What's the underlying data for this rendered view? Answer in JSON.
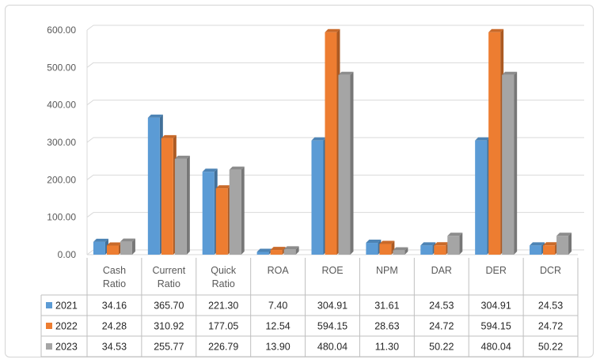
{
  "chart_data": {
    "type": "bar",
    "title": "",
    "xlabel": "",
    "ylabel": "",
    "ylim": [
      0,
      600
    ],
    "y_ticks": [
      "0.00",
      "100.00",
      "200.00",
      "300.00",
      "400.00",
      "500.00",
      "600.00"
    ],
    "grid": true,
    "legend_placement": "data-table-left",
    "categories": [
      [
        "Cash",
        "Ratio"
      ],
      [
        "Current",
        "Ratio"
      ],
      [
        "Quick",
        "Ratio"
      ],
      [
        "ROA"
      ],
      [
        "ROE"
      ],
      [
        "NPM"
      ],
      [
        "DAR"
      ],
      [
        "DER"
      ],
      [
        "DCR"
      ]
    ],
    "series": [
      {
        "name": "2021",
        "color": "#5b9bd5",
        "values": [
          34.16,
          365.7,
          221.3,
          7.4,
          304.91,
          31.61,
          24.53,
          304.91,
          24.53
        ],
        "labels": [
          "34.16",
          "365.70",
          "221.30",
          "7.40",
          "304.91",
          "31.61",
          "24.53",
          "304.91",
          "24.53"
        ]
      },
      {
        "name": "2022",
        "color": "#ed7d31",
        "values": [
          24.28,
          310.92,
          177.05,
          12.54,
          594.15,
          28.63,
          24.72,
          594.15,
          24.72
        ],
        "labels": [
          "24.28",
          "310.92",
          "177.05",
          "12.54",
          "594.15",
          "28.63",
          "24.72",
          "594.15",
          "24.72"
        ]
      },
      {
        "name": "2023",
        "color": "#a5a5a5",
        "values": [
          34.53,
          255.77,
          226.79,
          13.9,
          480.04,
          11.3,
          50.22,
          480.04,
          50.22
        ],
        "labels": [
          "34.53",
          "255.77",
          "226.79",
          "13.90",
          "480.04",
          "11.30",
          "50.22",
          "480.04",
          "50.22"
        ]
      }
    ]
  }
}
